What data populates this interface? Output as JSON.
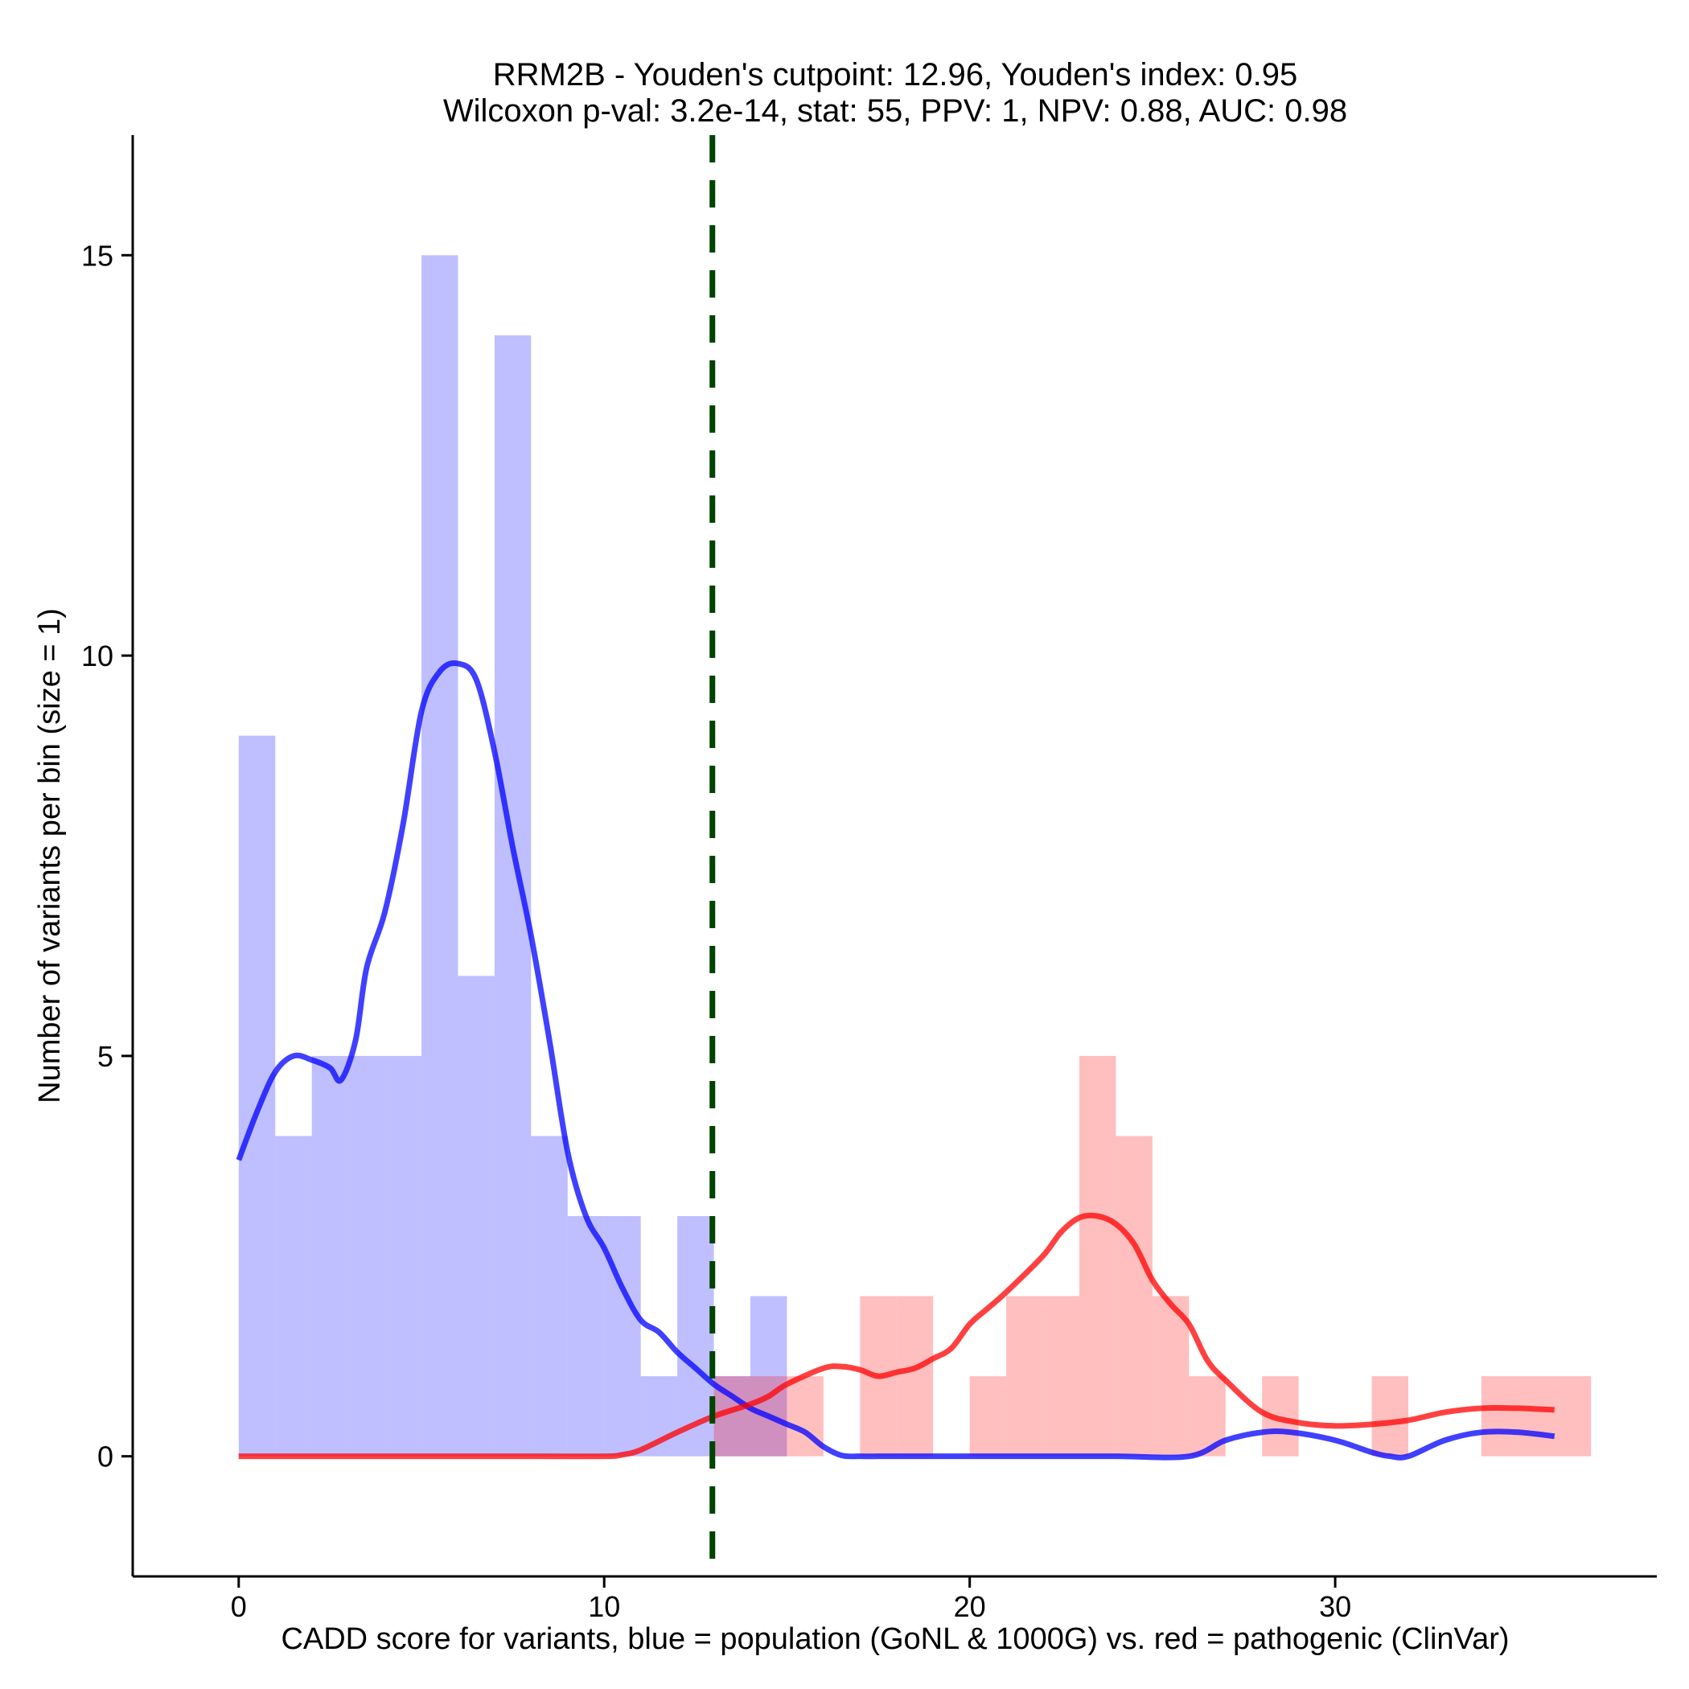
{
  "chart_data": {
    "type": "histogram",
    "title_lines": [
      "RRM2B - Youden's cutpoint: 12.96, Youden's index: 0.95",
      "Wilcoxon p-val: 3.2e-14, stat: 55, PPV: 1, NPV: 0.88, AUC: 0.98"
    ],
    "xlabel": "CADD score for variants, blue = population (GoNL & 1000G) vs. red = pathogenic (ClinVar)",
    "ylabel": "Number of variants per bin (size = 1)",
    "xlim": [
      -2.9,
      38.8
    ],
    "ylim": [
      -1.5,
      16.5
    ],
    "x_ticks": [
      0,
      10,
      20,
      30
    ],
    "y_ticks": [
      0,
      5,
      10,
      15
    ],
    "bin_size": 1,
    "cutpoint": 12.96,
    "series": [
      {
        "name": "population",
        "color": "#0000ff",
        "bin_starts": [
          0,
          1,
          2,
          3,
          4,
          5,
          6,
          7,
          8,
          9,
          10,
          11,
          12,
          13,
          14
        ],
        "counts": [
          9,
          4,
          5,
          5,
          5,
          15,
          6,
          14,
          4,
          3,
          3,
          1,
          3,
          1,
          2
        ]
      },
      {
        "name": "pathogenic",
        "color": "#ff0000",
        "bin_starts": [
          13,
          14,
          15,
          17,
          18,
          20,
          21,
          22,
          23,
          24,
          25,
          26,
          28,
          31,
          34,
          35,
          36
        ],
        "counts": [
          1,
          1,
          1,
          2,
          2,
          1,
          2,
          2,
          5,
          4,
          2,
          1,
          1,
          1,
          1,
          1,
          1
        ]
      }
    ],
    "density_curves": [
      {
        "name": "population",
        "color": "#0000ff",
        "x": [
          0,
          0.5,
          1,
          1.5,
          2,
          2.5,
          2.8,
          3.2,
          3.5,
          4,
          4.5,
          5,
          5.5,
          6,
          6.5,
          7,
          7.5,
          8,
          8.5,
          9,
          9.5,
          10,
          10.5,
          11,
          11.5,
          12,
          12.5,
          13,
          13.5,
          14,
          14.5,
          15,
          15.5,
          16,
          16.5,
          17,
          17.5,
          18,
          20,
          22,
          24,
          26,
          27,
          28,
          28.8,
          30,
          31,
          31.5,
          32,
          33,
          34,
          35,
          36
        ],
        "y": [
          3.7,
          4.3,
          4.8,
          5.0,
          4.95,
          4.85,
          4.7,
          5.2,
          6.1,
          6.8,
          7.9,
          9.3,
          9.8,
          9.9,
          9.7,
          8.8,
          7.6,
          6.5,
          5.2,
          3.8,
          3.0,
          2.6,
          2.1,
          1.7,
          1.55,
          1.3,
          1.1,
          0.9,
          0.75,
          0.6,
          0.5,
          0.4,
          0.3,
          0.12,
          0.01,
          0,
          0,
          0,
          0,
          0,
          0,
          0,
          0.2,
          0.3,
          0.3,
          0.2,
          0.05,
          0,
          0,
          0.2,
          0.3,
          0.3,
          0.25
        ]
      },
      {
        "name": "pathogenic",
        "color": "#ff0000",
        "x": [
          0,
          2,
          4,
          6,
          8,
          10,
          10.5,
          11,
          12,
          13,
          14,
          14.5,
          15,
          16,
          16.5,
          17,
          17.5,
          18,
          18.5,
          19,
          19.5,
          20,
          20.5,
          21,
          22,
          22.5,
          23,
          23.5,
          24,
          24.5,
          25,
          25.5,
          26,
          26.5,
          27,
          28,
          29,
          30,
          31,
          32,
          33,
          34,
          35,
          36
        ],
        "y": [
          0,
          0,
          0,
          0,
          0,
          0,
          0.02,
          0.08,
          0.3,
          0.5,
          0.65,
          0.75,
          0.9,
          1.1,
          1.12,
          1.08,
          1.0,
          1.05,
          1.1,
          1.22,
          1.35,
          1.65,
          1.85,
          2.05,
          2.5,
          2.8,
          2.98,
          3.0,
          2.9,
          2.65,
          2.2,
          1.9,
          1.65,
          1.2,
          0.95,
          0.55,
          0.42,
          0.38,
          0.4,
          0.45,
          0.55,
          0.6,
          0.6,
          0.58
        ]
      }
    ]
  }
}
